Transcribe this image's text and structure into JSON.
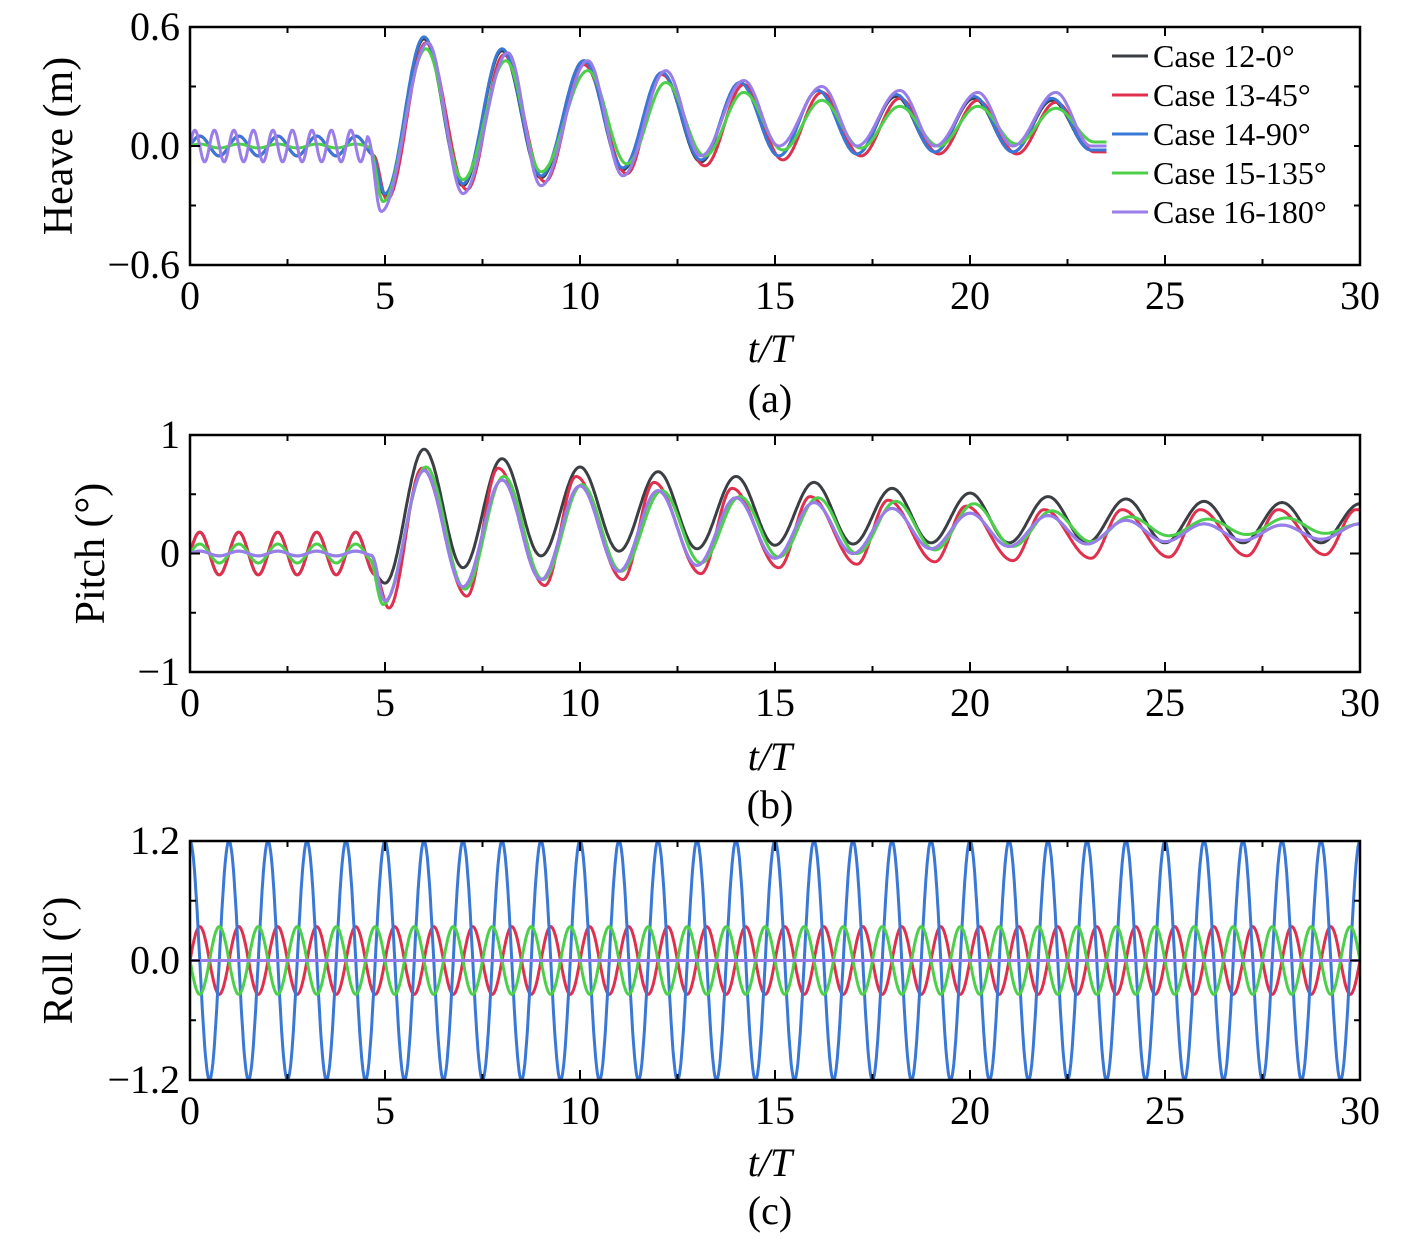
{
  "chart_data": [
    {
      "type": "line",
      "panel_label": "(a)",
      "ylabel": "Heave (m)",
      "xlabel": "t/T",
      "xlim": [
        0,
        30
      ],
      "ylim": [
        -0.6,
        0.6
      ],
      "xticks": [
        "0",
        "5",
        "10",
        "15",
        "20",
        "25",
        "30"
      ],
      "yticks": [
        "−0.6",
        "0.0",
        "0.6"
      ],
      "ytick_values": [
        -0.6,
        0.0,
        0.6
      ],
      "legend_position": "top-right",
      "series": [
        {
          "name": "Case 12-0°",
          "color": "#3b3f44",
          "x_end": 23.5,
          "pre_amp": 0.05,
          "pre_freq": 1,
          "peaks": [
            [
              5.0,
              -0.25
            ],
            [
              6.0,
              0.54
            ],
            [
              7.0,
              -0.2
            ],
            [
              8.0,
              0.48
            ],
            [
              9.0,
              -0.16
            ],
            [
              10.1,
              0.43
            ],
            [
              11.1,
              -0.12
            ],
            [
              12.1,
              0.37
            ],
            [
              13.1,
              -0.08
            ],
            [
              14.1,
              0.32
            ],
            [
              15.1,
              -0.05
            ],
            [
              16.1,
              0.28
            ],
            [
              17.1,
              -0.04
            ],
            [
              18.1,
              0.25
            ],
            [
              19.1,
              -0.03
            ],
            [
              20.1,
              0.24
            ],
            [
              21.1,
              -0.03
            ],
            [
              22.1,
              0.23
            ],
            [
              23.1,
              -0.02
            ]
          ]
        },
        {
          "name": "Case 13-45°",
          "color": "#e0304e",
          "x_end": 23.5,
          "pre_amp": 0.05,
          "pre_freq": 1,
          "peaks": [
            [
              5.05,
              -0.27
            ],
            [
              6.05,
              0.52
            ],
            [
              7.1,
              -0.22
            ],
            [
              8.05,
              0.46
            ],
            [
              9.1,
              -0.18
            ],
            [
              10.1,
              0.41
            ],
            [
              11.2,
              -0.14
            ],
            [
              12.1,
              0.36
            ],
            [
              13.2,
              -0.1
            ],
            [
              14.2,
              0.31
            ],
            [
              15.2,
              -0.07
            ],
            [
              16.2,
              0.27
            ],
            [
              17.2,
              -0.05
            ],
            [
              18.2,
              0.24
            ],
            [
              19.2,
              -0.04
            ],
            [
              20.2,
              0.23
            ],
            [
              21.2,
              -0.04
            ],
            [
              22.2,
              0.22
            ],
            [
              23.2,
              -0.03
            ]
          ]
        },
        {
          "name": "Case 14-90°",
          "color": "#3a78d8",
          "x_end": 23.5,
          "pre_amp": 0.05,
          "pre_freq": 1,
          "peaks": [
            [
              5.0,
              -0.24
            ],
            [
              6.0,
              0.55
            ],
            [
              7.0,
              -0.19
            ],
            [
              8.0,
              0.49
            ],
            [
              9.0,
              -0.15
            ],
            [
              10.1,
              0.43
            ],
            [
              11.1,
              -0.11
            ],
            [
              12.1,
              0.37
            ],
            [
              13.1,
              -0.07
            ],
            [
              14.1,
              0.32
            ],
            [
              15.1,
              -0.05
            ],
            [
              16.1,
              0.28
            ],
            [
              17.1,
              -0.04
            ],
            [
              18.1,
              0.26
            ],
            [
              19.1,
              -0.03
            ],
            [
              20.1,
              0.25
            ],
            [
              21.1,
              -0.03
            ],
            [
              22.1,
              0.24
            ],
            [
              23.1,
              -0.02
            ]
          ]
        },
        {
          "name": "Case 15-135°",
          "color": "#4cd04a",
          "x_end": 23.5,
          "pre_amp": 0.01,
          "pre_freq": 1,
          "peaks": [
            [
              4.95,
              -0.28
            ],
            [
              6.05,
              0.49
            ],
            [
              7.0,
              -0.17
            ],
            [
              8.1,
              0.43
            ],
            [
              9.0,
              -0.13
            ],
            [
              10.2,
              0.38
            ],
            [
              11.2,
              -0.09
            ],
            [
              12.2,
              0.32
            ],
            [
              13.2,
              -0.05
            ],
            [
              14.2,
              0.27
            ],
            [
              15.2,
              -0.02
            ],
            [
              16.2,
              0.23
            ],
            [
              17.2,
              -0.01
            ],
            [
              18.2,
              0.2
            ],
            [
              19.2,
              0.0
            ],
            [
              20.2,
              0.2
            ],
            [
              21.2,
              0.01
            ],
            [
              22.2,
              0.19
            ],
            [
              23.2,
              0.02
            ]
          ]
        },
        {
          "name": "Case 16-180°",
          "color": "#9a7de8",
          "x_end": 23.5,
          "pre_amp": 0.08,
          "pre_freq": 2,
          "peaks": [
            [
              4.9,
              -0.33
            ],
            [
              6.1,
              0.52
            ],
            [
              7.0,
              -0.24
            ],
            [
              8.15,
              0.47
            ],
            [
              9.0,
              -0.2
            ],
            [
              10.2,
              0.43
            ],
            [
              11.1,
              -0.15
            ],
            [
              12.2,
              0.38
            ],
            [
              13.1,
              -0.05
            ],
            [
              14.2,
              0.33
            ],
            [
              15.1,
              0.0
            ],
            [
              16.2,
              0.3
            ],
            [
              17.1,
              0.0
            ],
            [
              18.2,
              0.28
            ],
            [
              19.1,
              0.0
            ],
            [
              20.2,
              0.27
            ],
            [
              21.1,
              0.0
            ],
            [
              22.2,
              0.27
            ],
            [
              23.1,
              0.0
            ]
          ]
        }
      ]
    },
    {
      "type": "line",
      "panel_label": "(b)",
      "ylabel": "Pitch (°)",
      "xlabel": "t/T",
      "xlim": [
        0,
        30
      ],
      "ylim": [
        -1,
        1
      ],
      "xticks": [
        "0",
        "5",
        "10",
        "15",
        "20",
        "25",
        "30"
      ],
      "yticks": [
        "−1",
        "0",
        "1"
      ],
      "ytick_values": [
        -1,
        0,
        1
      ],
      "series": [
        {
          "name": "Case 12-0°",
          "color": "#3b3f44",
          "x_end": 30,
          "pre_amp": 0.18,
          "pre_freq": 1,
          "peaks": [
            [
              5.0,
              -0.25
            ],
            [
              6.0,
              0.88
            ],
            [
              7.0,
              -0.12
            ],
            [
              8.0,
              0.8
            ],
            [
              9.0,
              -0.02
            ],
            [
              10.0,
              0.73
            ],
            [
              11.0,
              0.02
            ],
            [
              12.0,
              0.69
            ],
            [
              13.0,
              0.04
            ],
            [
              14.0,
              0.65
            ],
            [
              15.0,
              0.07
            ],
            [
              16.0,
              0.6
            ],
            [
              17.0,
              0.08
            ],
            [
              18.0,
              0.55
            ],
            [
              19.0,
              0.09
            ],
            [
              20.0,
              0.51
            ],
            [
              21.0,
              0.09
            ],
            [
              22.0,
              0.48
            ],
            [
              23.0,
              0.09
            ],
            [
              24.0,
              0.46
            ],
            [
              25.0,
              0.09
            ],
            [
              26.0,
              0.44
            ],
            [
              27.0,
              0.09
            ],
            [
              28.0,
              0.43
            ],
            [
              29.0,
              0.09
            ],
            [
              30.0,
              0.42
            ]
          ]
        },
        {
          "name": "Case 13-45°",
          "color": "#e0304e",
          "x_end": 30,
          "pre_amp": 0.18,
          "pre_freq": 1,
          "peaks": [
            [
              5.1,
              -0.46
            ],
            [
              5.95,
              0.72
            ],
            [
              7.1,
              -0.36
            ],
            [
              7.9,
              0.72
            ],
            [
              9.1,
              -0.27
            ],
            [
              9.9,
              0.65
            ],
            [
              11.1,
              -0.22
            ],
            [
              11.9,
              0.6
            ],
            [
              13.1,
              -0.17
            ],
            [
              13.9,
              0.55
            ],
            [
              15.1,
              -0.12
            ],
            [
              15.9,
              0.48
            ],
            [
              17.1,
              -0.09
            ],
            [
              17.9,
              0.45
            ],
            [
              19.1,
              -0.07
            ],
            [
              19.9,
              0.4
            ],
            [
              21.1,
              -0.06
            ],
            [
              21.9,
              0.37
            ],
            [
              23.1,
              -0.04
            ],
            [
              23.9,
              0.37
            ],
            [
              25.1,
              -0.03
            ],
            [
              25.9,
              0.37
            ],
            [
              27.1,
              -0.02
            ],
            [
              27.9,
              0.37
            ],
            [
              29.1,
              -0.01
            ],
            [
              29.9,
              0.37
            ]
          ]
        },
        {
          "name": "Case 14-90°",
          "color": "#3a78d8",
          "x_end": 30,
          "pre_amp": 0.02,
          "pre_freq": 1,
          "peaks": [
            [
              5.0,
              -0.4
            ],
            [
              6.0,
              0.7
            ],
            [
              7.0,
              -0.28
            ],
            [
              8.0,
              0.62
            ],
            [
              9.0,
              -0.22
            ],
            [
              10.0,
              0.57
            ],
            [
              11.0,
              -0.15
            ],
            [
              12.0,
              0.53
            ],
            [
              13.0,
              -0.1
            ],
            [
              14.0,
              0.47
            ],
            [
              15.0,
              -0.04
            ],
            [
              16.0,
              0.43
            ],
            [
              17.0,
              0.0
            ],
            [
              18.0,
              0.38
            ],
            [
              19.0,
              0.04
            ],
            [
              20.0,
              0.34
            ],
            [
              21.0,
              0.06
            ],
            [
              22.0,
              0.32
            ],
            [
              23.0,
              0.08
            ],
            [
              24.0,
              0.28
            ],
            [
              25.0,
              0.1
            ],
            [
              26.0,
              0.25
            ],
            [
              27.0,
              0.11
            ],
            [
              28.0,
              0.24
            ],
            [
              29.0,
              0.12
            ],
            [
              30.0,
              0.25
            ]
          ]
        },
        {
          "name": "Case 15-135°",
          "color": "#4cd04a",
          "x_end": 30,
          "pre_amp": 0.08,
          "pre_freq": 1,
          "peaks": [
            [
              4.95,
              -0.43
            ],
            [
              6.05,
              0.73
            ],
            [
              7.05,
              -0.3
            ],
            [
              8.05,
              0.65
            ],
            [
              9.05,
              -0.22
            ],
            [
              10.05,
              0.58
            ],
            [
              11.05,
              -0.15
            ],
            [
              12.1,
              0.53
            ],
            [
              13.1,
              -0.08
            ],
            [
              14.1,
              0.48
            ],
            [
              15.1,
              -0.03
            ],
            [
              16.1,
              0.47
            ],
            [
              17.1,
              0.0
            ],
            [
              18.1,
              0.44
            ],
            [
              19.1,
              0.03
            ],
            [
              20.1,
              0.42
            ],
            [
              21.1,
              0.06
            ],
            [
              22.1,
              0.36
            ],
            [
              23.1,
              0.1
            ],
            [
              24.1,
              0.31
            ],
            [
              25.1,
              0.15
            ],
            [
              26.1,
              0.29
            ],
            [
              27.1,
              0.16
            ],
            [
              28.1,
              0.3
            ],
            [
              29.1,
              0.17
            ],
            [
              30.0,
              0.25
            ]
          ]
        },
        {
          "name": "Case 16-180°",
          "color": "#9a7de8",
          "x_end": 30,
          "pre_amp": 0.02,
          "pre_freq": 1,
          "peaks": [
            [
              5.0,
              -0.4
            ],
            [
              6.0,
              0.7
            ],
            [
              7.0,
              -0.28
            ],
            [
              8.0,
              0.62
            ],
            [
              9.0,
              -0.22
            ],
            [
              10.0,
              0.57
            ],
            [
              11.0,
              -0.15
            ],
            [
              12.0,
              0.53
            ],
            [
              13.0,
              -0.1
            ],
            [
              14.0,
              0.47
            ],
            [
              15.0,
              -0.04
            ],
            [
              16.0,
              0.43
            ],
            [
              17.0,
              0.0
            ],
            [
              18.0,
              0.38
            ],
            [
              19.0,
              0.04
            ],
            [
              20.0,
              0.34
            ],
            [
              21.0,
              0.06
            ],
            [
              22.0,
              0.32
            ],
            [
              23.0,
              0.08
            ],
            [
              24.0,
              0.28
            ],
            [
              25.0,
              0.1
            ],
            [
              26.0,
              0.25
            ],
            [
              27.0,
              0.11
            ],
            [
              28.0,
              0.24
            ],
            [
              29.0,
              0.12
            ],
            [
              30.0,
              0.25
            ]
          ]
        }
      ]
    },
    {
      "type": "line",
      "panel_label": "(c)",
      "ylabel": "Roll (°)",
      "xlabel": "t/T",
      "xlim": [
        0,
        30
      ],
      "ylim": [
        -1.2,
        1.2
      ],
      "xticks": [
        "0",
        "5",
        "10",
        "15",
        "20",
        "25",
        "30"
      ],
      "yticks": [
        "−1.2",
        "0.0",
        "1.2"
      ],
      "ytick_values": [
        -1.2,
        0.0,
        1.2
      ],
      "series": [
        {
          "name": "Case 12-0°",
          "color": "#3b3f44",
          "amplitude": 0.0,
          "period": 1.0,
          "phase": 0.0
        },
        {
          "name": "Case 13-45°",
          "color": "#e0304e",
          "amplitude": 0.34,
          "period": 1.0,
          "phase": 0.0
        },
        {
          "name": "Case 14-90°",
          "color": "#3a78d8",
          "amplitude": 1.2,
          "period": 1.0,
          "phase": 0.25
        },
        {
          "name": "Case 15-135°",
          "color": "#4cd04a",
          "amplitude": 0.34,
          "period": 1.0,
          "phase": 0.5
        },
        {
          "name": "Case 16-180°",
          "color": "#9a7de8",
          "amplitude": 0.0,
          "period": 1.0,
          "phase": 0.0
        }
      ]
    }
  ]
}
